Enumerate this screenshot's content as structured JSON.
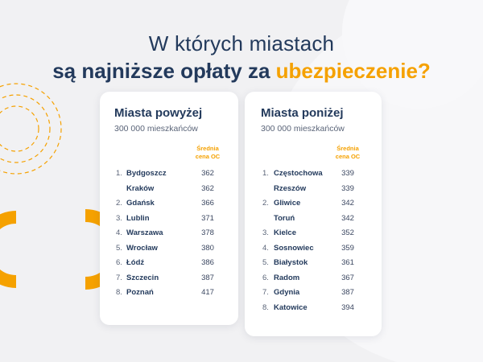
{
  "title": {
    "line1": "W których miastach",
    "line2_prefix": "są najniższe opłaty za ",
    "line2_accent": "ubezpieczenie?"
  },
  "colors": {
    "navy": "#233a5c",
    "accent": "#f5a100",
    "background": "#f1f1f3"
  },
  "left_card": {
    "title": "Miasta powyżej",
    "subtitle": "300 000 mieszkańców",
    "column_header_1": "Średnia",
    "column_header_2": "cena OC",
    "rows": [
      {
        "rank": "1.",
        "city": "Bydgoszcz",
        "price": "362"
      },
      {
        "rank": "",
        "city": "Kraków",
        "price": "362"
      },
      {
        "rank": "2.",
        "city": "Gdańsk",
        "price": "366"
      },
      {
        "rank": "3.",
        "city": "Lublin",
        "price": "371"
      },
      {
        "rank": "4.",
        "city": "Warszawa",
        "price": "378"
      },
      {
        "rank": "5.",
        "city": "Wrocław",
        "price": "380"
      },
      {
        "rank": "6.",
        "city": "Łódź",
        "price": "386"
      },
      {
        "rank": "7.",
        "city": "Szczecin",
        "price": "387"
      },
      {
        "rank": "8.",
        "city": "Poznań",
        "price": "417"
      }
    ]
  },
  "right_card": {
    "title": "Miasta poniżej",
    "subtitle": "300 000 mieszkańców",
    "column_header_1": "Średnia",
    "column_header_2": "cena OC",
    "rows": [
      {
        "rank": "1.",
        "city": "Częstochowa",
        "price": "339"
      },
      {
        "rank": "",
        "city": "Rzeszów",
        "price": "339"
      },
      {
        "rank": "2.",
        "city": "Gliwice",
        "price": "342"
      },
      {
        "rank": "",
        "city": "Toruń",
        "price": "342"
      },
      {
        "rank": "3.",
        "city": "Kielce",
        "price": "352"
      },
      {
        "rank": "4.",
        "city": "Sosnowiec",
        "price": "359"
      },
      {
        "rank": "5.",
        "city": "Białystok",
        "price": "361"
      },
      {
        "rank": "6.",
        "city": "Radom",
        "price": "367"
      },
      {
        "rank": "7.",
        "city": "Gdynia",
        "price": "387"
      },
      {
        "rank": "8.",
        "city": "Katowice",
        "price": "394"
      }
    ]
  }
}
